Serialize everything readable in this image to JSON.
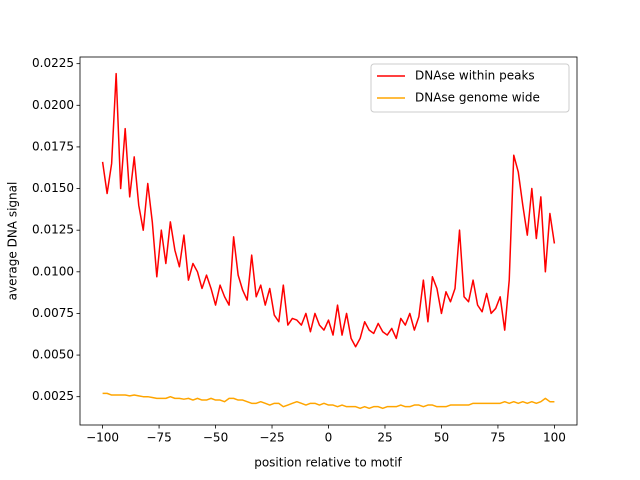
{
  "chart_data": {
    "type": "line",
    "xlabel": "position relative to motif",
    "ylabel": "average DNA signal",
    "x": [
      -100,
      -98,
      -96,
      -94,
      -92,
      -90,
      -88,
      -86,
      -84,
      -82,
      -80,
      -78,
      -76,
      -74,
      -72,
      -70,
      -68,
      -66,
      -64,
      -62,
      -60,
      -58,
      -56,
      -54,
      -52,
      -50,
      -48,
      -46,
      -44,
      -42,
      -40,
      -38,
      -36,
      -34,
      -32,
      -30,
      -28,
      -26,
      -24,
      -22,
      -20,
      -18,
      -16,
      -14,
      -12,
      -10,
      -8,
      -6,
      -4,
      -2,
      0,
      2,
      4,
      6,
      8,
      10,
      12,
      14,
      16,
      18,
      20,
      22,
      24,
      26,
      28,
      30,
      32,
      34,
      36,
      38,
      40,
      42,
      44,
      46,
      48,
      50,
      52,
      54,
      56,
      58,
      60,
      62,
      64,
      66,
      68,
      70,
      72,
      74,
      76,
      78,
      80,
      82,
      84,
      86,
      88,
      90,
      92,
      94,
      96,
      98,
      100
    ],
    "series": [
      {
        "name": "DNAse within peaks",
        "color": "#ff0000",
        "values": [
          0.0166,
          0.0147,
          0.0165,
          0.0219,
          0.015,
          0.0186,
          0.0145,
          0.0169,
          0.014,
          0.0125,
          0.0153,
          0.013,
          0.0097,
          0.0125,
          0.0105,
          0.013,
          0.0113,
          0.0103,
          0.0122,
          0.0095,
          0.0105,
          0.01,
          0.009,
          0.0098,
          0.009,
          0.008,
          0.0092,
          0.0085,
          0.008,
          0.0121,
          0.0098,
          0.0089,
          0.0083,
          0.011,
          0.0085,
          0.0092,
          0.008,
          0.009,
          0.0074,
          0.007,
          0.0092,
          0.0068,
          0.0072,
          0.0071,
          0.0068,
          0.0075,
          0.0064,
          0.0075,
          0.0068,
          0.0065,
          0.0071,
          0.0062,
          0.008,
          0.0062,
          0.0075,
          0.006,
          0.0055,
          0.006,
          0.007,
          0.0065,
          0.0063,
          0.0069,
          0.0064,
          0.0062,
          0.0066,
          0.006,
          0.0072,
          0.0068,
          0.0075,
          0.0065,
          0.0073,
          0.0095,
          0.007,
          0.0097,
          0.009,
          0.0075,
          0.0088,
          0.0082,
          0.009,
          0.0125,
          0.0085,
          0.0082,
          0.0095,
          0.008,
          0.0076,
          0.0087,
          0.0075,
          0.0078,
          0.0085,
          0.0065,
          0.0095,
          0.017,
          0.016,
          0.014,
          0.0122,
          0.015,
          0.012,
          0.0145,
          0.01,
          0.0135,
          0.0117
        ]
      },
      {
        "name": "DNAse genome wide",
        "color": "#ffa500",
        "values": [
          0.0027,
          0.0027,
          0.0026,
          0.0026,
          0.0026,
          0.0026,
          0.00255,
          0.0026,
          0.00255,
          0.0025,
          0.0025,
          0.00245,
          0.0024,
          0.0024,
          0.0024,
          0.0025,
          0.0024,
          0.0024,
          0.00235,
          0.0024,
          0.0023,
          0.0024,
          0.0023,
          0.0023,
          0.0024,
          0.0023,
          0.0023,
          0.0022,
          0.0024,
          0.0024,
          0.0023,
          0.0023,
          0.0022,
          0.0021,
          0.0021,
          0.0022,
          0.0021,
          0.002,
          0.0021,
          0.0021,
          0.0019,
          0.002,
          0.0021,
          0.0022,
          0.0021,
          0.002,
          0.0021,
          0.0021,
          0.002,
          0.0021,
          0.002,
          0.002,
          0.0019,
          0.002,
          0.0019,
          0.0019,
          0.0019,
          0.0018,
          0.0019,
          0.0018,
          0.0019,
          0.0019,
          0.0018,
          0.0019,
          0.0019,
          0.0019,
          0.002,
          0.0019,
          0.0019,
          0.002,
          0.002,
          0.0019,
          0.002,
          0.002,
          0.0019,
          0.0019,
          0.0019,
          0.002,
          0.002,
          0.002,
          0.002,
          0.002,
          0.0021,
          0.0021,
          0.0021,
          0.0021,
          0.0021,
          0.0021,
          0.0021,
          0.0022,
          0.0021,
          0.0022,
          0.0021,
          0.0022,
          0.0021,
          0.0022,
          0.0021,
          0.0022,
          0.0024,
          0.0022,
          0.0022
        ]
      }
    ],
    "xlim": [
      -110,
      110
    ],
    "ylim": [
      0.0008,
      0.0229
    ],
    "xticks": [
      {
        "value": -100,
        "label": "−100"
      },
      {
        "value": -75,
        "label": "−75"
      },
      {
        "value": -50,
        "label": "−50"
      },
      {
        "value": -25,
        "label": "−25"
      },
      0,
      25,
      50,
      75,
      100
    ],
    "yticks": [
      0.0025,
      {
        "value": 0.005,
        "label": "0.0050"
      },
      0.0075,
      {
        "value": 0.01,
        "label": "0.0100"
      },
      0.0125,
      {
        "value": 0.015,
        "label": "0.0150"
      },
      0.0175,
      {
        "value": 0.02,
        "label": "0.0200"
      },
      0.0225
    ],
    "legend": "upper right"
  }
}
